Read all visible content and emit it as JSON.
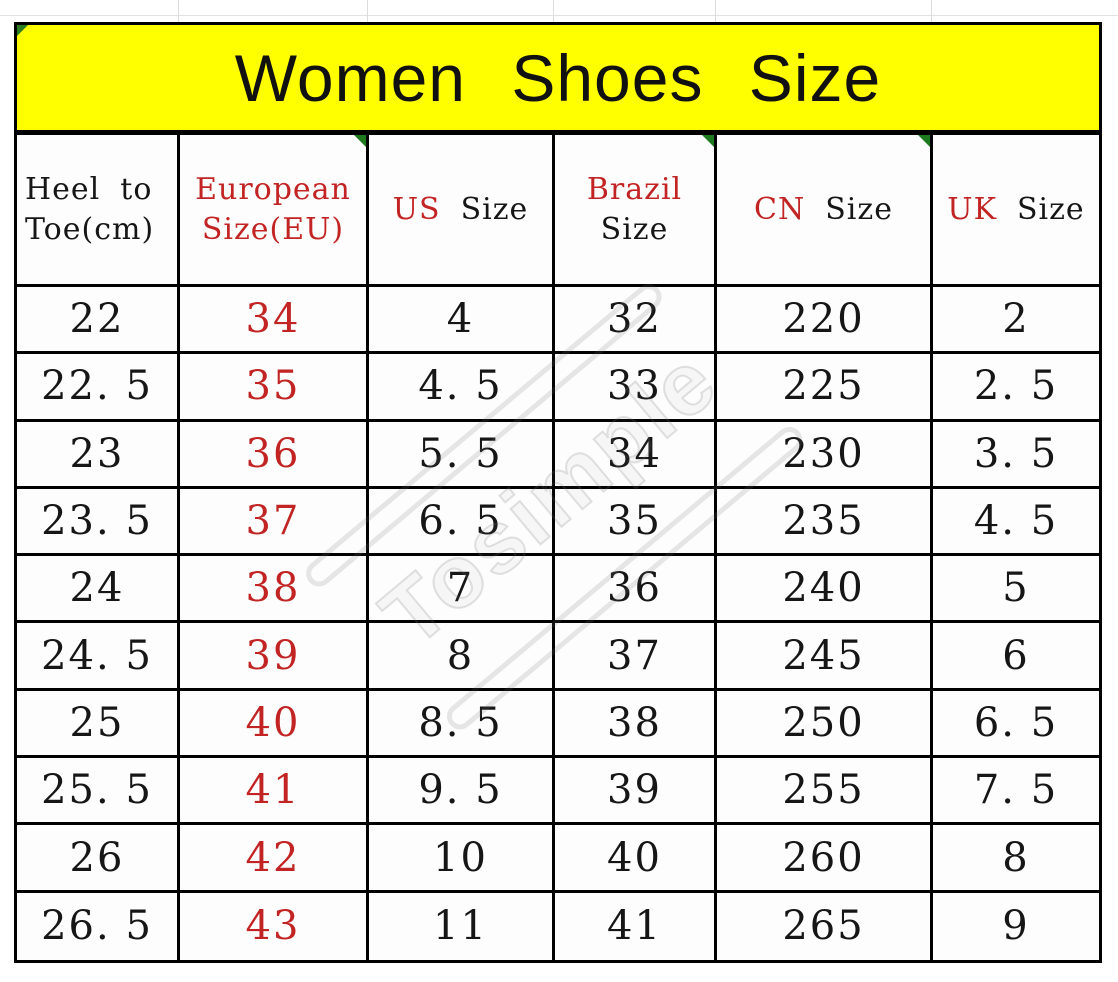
{
  "banner": {
    "title": "Women Shoes Size",
    "bg_color": "#FFFF00",
    "text_color": "#111111"
  },
  "colors": {
    "red_text": "#c22424",
    "black_text": "#161616",
    "grid_line": "#000000",
    "marker_green": "#1e7a1f"
  },
  "watermark": {
    "text": "Tosimple"
  },
  "table": {
    "header_cells": [
      {
        "id": "heel-to-toe",
        "align": "left",
        "justify_first_line": true,
        "lines": [
          [
            {
              "text": "Heel",
              "red": false
            },
            {
              "text": "to",
              "red": false
            }
          ],
          [
            {
              "text": "Toe(cm)",
              "red": false
            }
          ]
        ],
        "marker": false
      },
      {
        "id": "european-size",
        "lines": [
          [
            {
              "text": "European",
              "red": true
            }
          ],
          [
            {
              "text": "Size(EU)",
              "red": true
            }
          ]
        ],
        "marker": true
      },
      {
        "id": "us-size",
        "lines": [
          [
            {
              "text": "US",
              "red": true
            },
            {
              "text": "Size",
              "red": false
            }
          ]
        ],
        "marker": false
      },
      {
        "id": "brazil-size",
        "lines": [
          [
            {
              "text": "Brazil",
              "red": true
            }
          ],
          [
            {
              "text": "Size",
              "red": false
            }
          ]
        ],
        "marker": true
      },
      {
        "id": "cn-size",
        "lines": [
          [
            {
              "text": "CN",
              "red": true
            },
            {
              "text": "Size",
              "red": false
            }
          ]
        ],
        "marker": true
      },
      {
        "id": "uk-size",
        "lines": [
          [
            {
              "text": "UK",
              "red": true
            },
            {
              "text": "Size",
              "red": false
            }
          ]
        ],
        "marker": false
      }
    ],
    "red_column_index": 1,
    "rows": [
      [
        "22",
        "34",
        "4",
        "32",
        "220",
        "2"
      ],
      [
        "22. 5",
        "35",
        "4. 5",
        "33",
        "225",
        "2. 5"
      ],
      [
        "23",
        "36",
        "5. 5",
        "34",
        "230",
        "3. 5"
      ],
      [
        "23. 5",
        "37",
        "6. 5",
        "35",
        "235",
        "4. 5"
      ],
      [
        "24",
        "38",
        "7",
        "36",
        "240",
        "5"
      ],
      [
        "24. 5",
        "39",
        "8",
        "37",
        "245",
        "6"
      ],
      [
        "25",
        "40",
        "8. 5",
        "38",
        "250",
        "6. 5"
      ],
      [
        "25. 5",
        "41",
        "9. 5",
        "39",
        "255",
        "7. 5"
      ],
      [
        "26",
        "42",
        "10",
        "40",
        "260",
        "8"
      ],
      [
        "26. 5",
        "43",
        "11",
        "41",
        "265",
        "9"
      ]
    ]
  }
}
